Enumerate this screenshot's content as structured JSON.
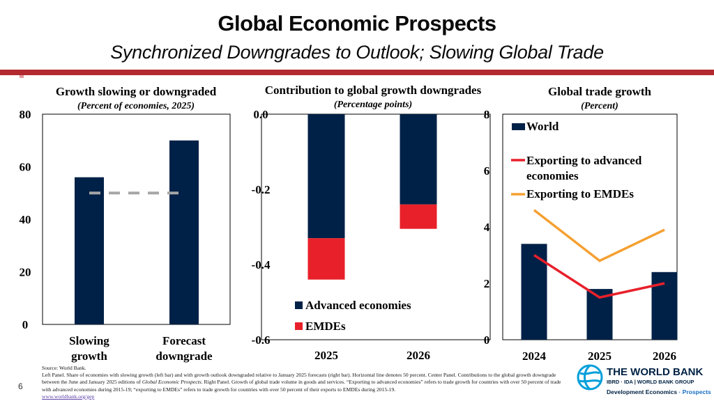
{
  "header": {
    "title": "Global Economic Prospects",
    "subtitle": "Synchronized Downgrades to Outlook; Slowing Global Trade"
  },
  "panels": {
    "left": {
      "title": "Growth slowing or downgraded",
      "subtitle": "(Percent of economies, 2025)"
    },
    "center": {
      "title": "Contribution to global growth downgrades",
      "subtitle": "(Percentage points)"
    },
    "right": {
      "title": "Global trade growth",
      "subtitle": "(Percent)"
    }
  },
  "colors": {
    "navy": "#002147",
    "red": "#e8202a",
    "orange": "#f5a031",
    "gray": "#a6a6a6",
    "brand": "#b22a2f"
  },
  "chart_data": [
    {
      "type": "bar",
      "title": "Growth slowing or downgraded",
      "subtitle": "(Percent of economies, 2025)",
      "categories": [
        "Slowing growth",
        "Forecast downgrade"
      ],
      "category_lines": [
        [
          "Slowing",
          "growth"
        ],
        [
          "Forecast",
          "downgrade"
        ]
      ],
      "values": [
        56,
        70
      ],
      "reference_line": 50,
      "ylim": [
        0,
        80
      ],
      "yticks": [
        "0",
        "20",
        "40",
        "60",
        "80"
      ]
    },
    {
      "type": "bar",
      "stacked": true,
      "title": "Contribution to global growth downgrades",
      "subtitle": "(Percentage points)",
      "categories": [
        "2025",
        "2026"
      ],
      "series": [
        {
          "name": "Advanced economies",
          "values": [
            -0.33,
            -0.24
          ]
        },
        {
          "name": "EMDEs",
          "values": [
            -0.11,
            -0.065
          ]
        }
      ],
      "ylim": [
        -0.6,
        0
      ],
      "yticks": [
        "0.0",
        "-0.2",
        "-0.4",
        "-0.6"
      ],
      "legend": [
        "Advanced economies",
        "EMDEs"
      ]
    },
    {
      "type": "bar",
      "title": "Global trade growth",
      "subtitle": "(Percent)",
      "categories": [
        "2024",
        "2025",
        "2026"
      ],
      "series": [
        {
          "name": "World",
          "kind": "bar",
          "values": [
            3.4,
            1.8,
            2.4
          ]
        },
        {
          "name": "Exporting to advanced economies",
          "kind": "line",
          "values": [
            3.0,
            1.5,
            2.0
          ]
        },
        {
          "name": "Exporting to EMDEs",
          "kind": "line",
          "values": [
            4.6,
            2.8,
            3.9
          ]
        }
      ],
      "ylim": [
        0,
        8
      ],
      "yticks": [
        "0",
        "2",
        "4",
        "6",
        "8"
      ],
      "legend": [
        "World",
        "Exporting to advanced",
        "economies",
        "Exporting to EMDEs"
      ]
    }
  ],
  "footer": {
    "source": "Source: World Bank.",
    "notes_part1": "Left Panel. Share of economies with slowing growth (left bar) and with growth outlook downgraded relative to January 2025 forecasts (right bar). Horizontal line denotes 50 percent. Center Panel. Contributions to the global growth downgrade between the June and January 2025 editions of ",
    "notes_italic": "Global Economic Prospects",
    "notes_part2": ". Right Panel. Growth of global trade volume in goods and services. “Exporting to advanced economies” refers to trade growth for countries with over 50 percent of trade with advanced economies during 2015-19; “exporting to EMDEs” refers to trade growth for countries with over 50 percent of their exports to EMDEs during 2015-19.",
    "link": "www.worldbank.org/gep",
    "page_number": "6"
  },
  "logo": {
    "name": "THE WORLD BANK",
    "ibrd": "IBRD · IDA | WORLD BANK GROUP",
    "dept_main": "Development Economics",
    "dept_sep": " · ",
    "dept_sub": "Prospects"
  }
}
